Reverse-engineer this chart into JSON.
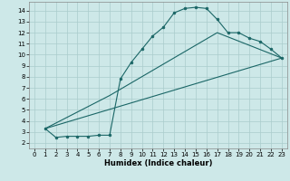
{
  "xlabel": "Humidex (Indice chaleur)",
  "background_color": "#cde8e8",
  "grid_color": "#aacccc",
  "line_color": "#1a6666",
  "xlim": [
    -0.5,
    23.5
  ],
  "ylim": [
    1.5,
    14.8
  ],
  "yticks": [
    2,
    3,
    4,
    5,
    6,
    7,
    8,
    9,
    10,
    11,
    12,
    13,
    14
  ],
  "xticks": [
    0,
    1,
    2,
    3,
    4,
    5,
    6,
    7,
    8,
    9,
    10,
    11,
    12,
    13,
    14,
    15,
    16,
    17,
    18,
    19,
    20,
    21,
    22,
    23
  ],
  "curve1_x": [
    1,
    2,
    3,
    4,
    5,
    6,
    7,
    8,
    9,
    10,
    11,
    12,
    13,
    14,
    15,
    16,
    17,
    18,
    19,
    20,
    21,
    22,
    23
  ],
  "curve1_y": [
    3.3,
    2.5,
    2.6,
    2.6,
    2.6,
    2.7,
    2.7,
    7.8,
    9.3,
    10.5,
    11.7,
    12.5,
    13.8,
    14.2,
    14.3,
    14.2,
    13.2,
    12.0,
    12.0,
    11.5,
    11.2,
    10.5,
    9.7
  ],
  "line2_x": [
    1,
    23
  ],
  "line2_y": [
    3.3,
    9.7
  ],
  "line3_x": [
    1,
    7,
    17,
    23
  ],
  "line3_y": [
    3.3,
    6.3,
    12.0,
    9.7
  ],
  "xlabel_fontsize": 6,
  "tick_fontsize": 5
}
